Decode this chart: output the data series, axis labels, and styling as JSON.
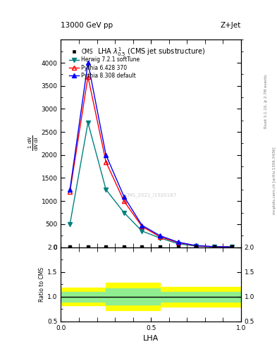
{
  "title_top": "13000 GeV pp",
  "title_right": "Z+Jet",
  "plot_title": "LHA $\\lambda^{1}_{0.5}$ (CMS jet substructure)",
  "xlabel": "LHA",
  "ylabel_ratio": "Ratio to CMS",
  "right_label": "mcplots.cern.ch [arXiv:1306.3436]",
  "right_label2": "Rivet 3.1.10, ≥ 2.7M events",
  "watermark": "CMS_2021_I1920187",
  "herwig_x": [
    0.05,
    0.15,
    0.25,
    0.35,
    0.45,
    0.55,
    0.65,
    0.75,
    0.85,
    0.95
  ],
  "herwig_y": [
    500,
    2700,
    1250,
    750,
    350,
    200,
    75,
    25,
    10,
    5
  ],
  "pythia6_x": [
    0.05,
    0.15,
    0.25,
    0.35,
    0.45,
    0.55,
    0.65,
    0.75,
    0.85,
    0.95
  ],
  "pythia6_y": [
    1200,
    3700,
    1850,
    1000,
    450,
    225,
    100,
    30,
    10,
    5
  ],
  "pythia8_x": [
    0.05,
    0.15,
    0.25,
    0.35,
    0.45,
    0.55,
    0.65,
    0.75,
    0.85,
    0.95
  ],
  "pythia8_y": [
    1250,
    4000,
    2000,
    1100,
    475,
    250,
    110,
    35,
    12,
    5
  ],
  "cms_x": [
    0.05,
    0.15,
    0.25,
    0.35,
    0.45,
    0.55,
    0.65,
    0.75,
    0.85,
    0.95
  ],
  "cms_y": [
    10,
    10,
    10,
    10,
    10,
    10,
    10,
    10,
    10,
    10
  ],
  "ylim_main": [
    0,
    4500
  ],
  "xlim": [
    0,
    1.0
  ],
  "yticks_main": [
    0,
    500,
    1000,
    1500,
    2000,
    2500,
    3000,
    3500,
    4000
  ],
  "xticks": [
    0,
    0.5,
    1.0
  ],
  "herwig_color": "#008080",
  "pythia6_color": "#FF0000",
  "pythia8_color": "#0000FF",
  "cms_color": "#000000",
  "ratio_ylim": [
    0.5,
    2.0
  ],
  "ratio_yticks": [
    0.5,
    1.0,
    1.5,
    2.0
  ],
  "band_x": [
    0.0,
    0.05,
    0.1,
    0.15,
    0.2,
    0.25,
    0.3,
    0.35,
    0.4,
    0.45,
    0.5,
    0.55,
    0.6,
    0.65,
    0.7,
    0.75,
    0.8,
    0.85,
    0.9,
    0.95,
    1.0
  ],
  "yellow_lo": [
    0.82,
    0.82,
    0.82,
    0.82,
    0.82,
    0.72,
    0.72,
    0.72,
    0.72,
    0.72,
    0.72,
    0.8,
    0.8,
    0.8,
    0.8,
    0.8,
    0.8,
    0.8,
    0.8,
    0.8,
    0.8
  ],
  "yellow_hi": [
    1.18,
    1.18,
    1.18,
    1.18,
    1.18,
    1.28,
    1.28,
    1.28,
    1.28,
    1.28,
    1.28,
    1.2,
    1.2,
    1.2,
    1.2,
    1.2,
    1.2,
    1.2,
    1.2,
    1.2,
    1.2
  ],
  "green_lo": [
    0.9,
    0.9,
    0.9,
    0.9,
    0.9,
    0.84,
    0.84,
    0.84,
    0.84,
    0.84,
    0.84,
    0.9,
    0.9,
    0.9,
    0.9,
    0.9,
    0.9,
    0.9,
    0.9,
    0.9,
    0.9
  ],
  "green_hi": [
    1.1,
    1.1,
    1.1,
    1.1,
    1.1,
    1.16,
    1.16,
    1.16,
    1.16,
    1.16,
    1.16,
    1.1,
    1.1,
    1.1,
    1.1,
    1.1,
    1.1,
    1.1,
    1.1,
    1.1,
    1.1
  ]
}
